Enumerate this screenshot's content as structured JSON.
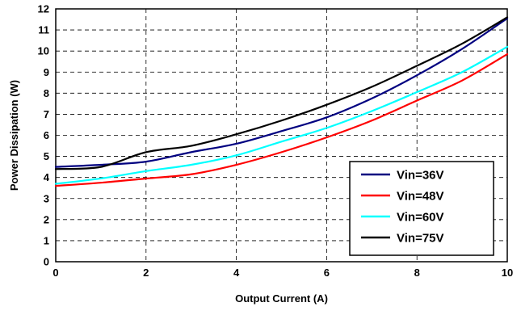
{
  "chart_data": {
    "type": "line",
    "title": "",
    "xlabel": "Output Current (A)",
    "ylabel": "Power Dissipation (W)",
    "xlim": [
      0,
      10
    ],
    "ylim": [
      0,
      12
    ],
    "xticks": [
      "0",
      "2",
      "4",
      "6",
      "8",
      "10"
    ],
    "yticks": [
      "0",
      "1",
      "2",
      "3",
      "4",
      "5",
      "6",
      "7",
      "8",
      "9",
      "10",
      "11",
      "12"
    ],
    "grid": true,
    "legend_position": "bottom-right",
    "x": [
      0,
      1,
      2,
      3,
      4,
      5,
      6,
      7,
      8,
      9,
      10
    ],
    "series": [
      {
        "name": "Vin=36V",
        "color": "#000080",
        "values": [
          4.5,
          4.6,
          4.75,
          5.2,
          5.6,
          6.2,
          6.85,
          7.75,
          8.85,
          10.1,
          11.55
        ]
      },
      {
        "name": "Vin=48V",
        "color": "#ff0000",
        "values": [
          3.6,
          3.75,
          3.95,
          4.15,
          4.6,
          5.2,
          5.9,
          6.7,
          7.65,
          8.6,
          9.85
        ]
      },
      {
        "name": "Vin=60V",
        "color": "#00ffff",
        "values": [
          3.7,
          3.95,
          4.3,
          4.6,
          5.05,
          5.7,
          6.35,
          7.15,
          8.05,
          9.0,
          10.2
        ]
      },
      {
        "name": "Vin=75V",
        "color": "#000000",
        "values": [
          4.4,
          4.5,
          5.2,
          5.5,
          6.05,
          6.7,
          7.45,
          8.3,
          9.3,
          10.35,
          11.6
        ]
      }
    ]
  }
}
